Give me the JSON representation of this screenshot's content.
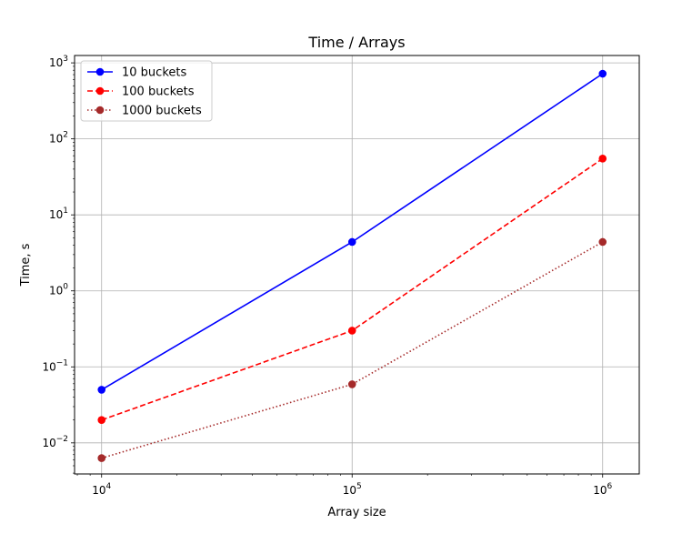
{
  "chart_data": {
    "type": "line",
    "title": "Time / Arrays",
    "xlabel": "Array size",
    "ylabel": "Time, s",
    "xscale": "log",
    "yscale": "log",
    "x": [
      10000,
      100000,
      1000000
    ],
    "xlim": [
      7800,
      1400000
    ],
    "ylim": [
      0.0039,
      1250
    ],
    "x_ticks": [
      {
        "value": 10000,
        "base": "10",
        "exp": "4"
      },
      {
        "value": 100000,
        "base": "10",
        "exp": "5"
      },
      {
        "value": 1000000,
        "base": "10",
        "exp": "6"
      }
    ],
    "y_ticks": [
      {
        "value": 0.01,
        "base": "10",
        "exp": "−2"
      },
      {
        "value": 0.1,
        "base": "10",
        "exp": "−1"
      },
      {
        "value": 1,
        "base": "10",
        "exp": "0"
      },
      {
        "value": 10,
        "base": "10",
        "exp": "1"
      },
      {
        "value": 100,
        "base": "10",
        "exp": "2"
      },
      {
        "value": 1000,
        "base": "10",
        "exp": "3"
      }
    ],
    "grid": true,
    "legend": "top-left",
    "series": [
      {
        "name": "10 buckets",
        "values": [
          0.05,
          4.4,
          720
        ],
        "color": "#0000ff",
        "linestyle": "solid"
      },
      {
        "name": "100 buckets",
        "values": [
          0.02,
          0.3,
          55
        ],
        "color": "#ff0000",
        "linestyle": "dashed"
      },
      {
        "name": "1000 buckets",
        "values": [
          0.0063,
          0.059,
          4.4
        ],
        "color": "#a52a2a",
        "linestyle": "dotted"
      }
    ]
  }
}
